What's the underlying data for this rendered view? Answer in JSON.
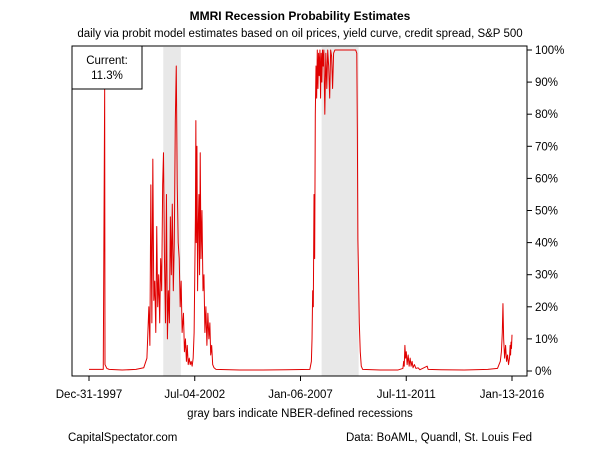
{
  "chart_data": {
    "type": "line",
    "title": "MMRI Recession Probability Estimates",
    "subtitle": "daily via probit model estimates based on oil prices, yield curve, credit spread, S&P 500",
    "xlabel": "gray bars indicate NBER-defined recessions",
    "ylabel": "",
    "x_tick_labels": [
      "Dec-31-1997",
      "Jul-04-2002",
      "Jan-06-2007",
      "Jul-11-2011",
      "Jan-13-2016"
    ],
    "y_tick_labels": [
      "0%",
      "10%",
      "20%",
      "30%",
      "40%",
      "50%",
      "60%",
      "70%",
      "80%",
      "90%",
      "100%"
    ],
    "xlim": [
      "1997-12-31",
      "2016-01-13"
    ],
    "ylim": [
      0,
      100
    ],
    "y_axis_position": "right",
    "grid": false,
    "line_color": "#e00000",
    "recession_color": "#e8e8e8",
    "recession_bands": [
      {
        "start": "2001-03-01",
        "end": "2001-11-30"
      },
      {
        "start": "2007-12-01",
        "end": "2009-06-30"
      }
    ],
    "annotation": {
      "label": "Current:",
      "value": "11.3%"
    },
    "series": [
      {
        "values": [
          [
            "1997-12-31",
            0.5
          ],
          [
            "1998-08-10",
            0.5
          ],
          [
            "1998-09-01",
            88
          ],
          [
            "1998-09-06",
            2
          ],
          [
            "1998-10-05",
            0.8
          ],
          [
            "1998-11-10",
            0.5
          ],
          [
            "1999-06-01",
            0.3
          ],
          [
            "2000-01-01",
            0.5
          ],
          [
            "2000-05-01",
            1
          ],
          [
            "2000-06-20",
            4
          ],
          [
            "2000-07-20",
            20
          ],
          [
            "2000-08-05",
            8
          ],
          [
            "2000-08-20",
            58
          ],
          [
            "2000-09-05",
            15
          ],
          [
            "2000-09-20",
            66
          ],
          [
            "2000-10-05",
            22
          ],
          [
            "2000-10-20",
            28
          ],
          [
            "2000-11-05",
            12
          ],
          [
            "2000-11-20",
            45
          ],
          [
            "2000-12-05",
            20
          ],
          [
            "2000-12-20",
            30
          ],
          [
            "2001-01-05",
            15
          ],
          [
            "2001-01-20",
            35
          ],
          [
            "2001-02-05",
            25
          ],
          [
            "2001-02-20",
            58
          ],
          [
            "2001-03-05",
            68
          ],
          [
            "2001-03-20",
            35
          ],
          [
            "2001-04-05",
            15
          ],
          [
            "2001-04-20",
            55
          ],
          [
            "2001-05-05",
            10
          ],
          [
            "2001-05-20",
            25
          ],
          [
            "2001-06-05",
            15
          ],
          [
            "2001-06-20",
            48
          ],
          [
            "2001-07-05",
            30
          ],
          [
            "2001-07-20",
            52
          ],
          [
            "2001-08-05",
            25
          ],
          [
            "2001-08-20",
            40
          ],
          [
            "2001-09-05",
            78
          ],
          [
            "2001-09-20",
            95
          ],
          [
            "2001-10-05",
            58
          ],
          [
            "2001-10-20",
            40
          ],
          [
            "2001-11-05",
            35
          ],
          [
            "2001-11-20",
            20
          ],
          [
            "2001-12-05",
            28
          ],
          [
            "2001-12-20",
            12
          ],
          [
            "2002-01-10",
            18
          ],
          [
            "2002-01-25",
            6
          ],
          [
            "2002-02-10",
            10
          ],
          [
            "2002-02-25",
            3
          ],
          [
            "2002-03-10",
            8
          ],
          [
            "2002-03-25",
            2
          ],
          [
            "2002-04-10",
            4
          ],
          [
            "2002-04-25",
            2
          ],
          [
            "2002-05-10",
            3
          ],
          [
            "2002-05-25",
            1.5
          ],
          [
            "2002-06-10",
            4
          ],
          [
            "2002-06-25",
            12
          ],
          [
            "2002-07-05",
            30
          ],
          [
            "2002-07-15",
            48
          ],
          [
            "2002-07-22",
            78
          ],
          [
            "2002-07-28",
            40
          ],
          [
            "2002-08-08",
            70
          ],
          [
            "2002-08-18",
            25
          ],
          [
            "2002-08-28",
            45
          ],
          [
            "2002-09-08",
            55
          ],
          [
            "2002-09-18",
            30
          ],
          [
            "2002-09-28",
            68
          ],
          [
            "2002-10-10",
            35
          ],
          [
            "2002-10-25",
            50
          ],
          [
            "2002-11-10",
            25
          ],
          [
            "2002-11-25",
            30
          ],
          [
            "2002-12-10",
            12
          ],
          [
            "2002-12-25",
            20
          ],
          [
            "2003-01-10",
            8
          ],
          [
            "2003-01-25",
            18
          ],
          [
            "2003-02-10",
            10
          ],
          [
            "2003-02-25",
            15
          ],
          [
            "2003-03-10",
            5
          ],
          [
            "2003-03-25",
            8
          ],
          [
            "2003-04-10",
            2
          ],
          [
            "2003-05-01",
            1
          ],
          [
            "2003-06-01",
            0.5
          ],
          [
            "2004-06-01",
            0.3
          ],
          [
            "2005-06-01",
            0.3
          ],
          [
            "2006-06-01",
            0.4
          ],
          [
            "2007-06-01",
            0.5
          ],
          [
            "2007-06-25",
            3
          ],
          [
            "2007-07-05",
            10
          ],
          [
            "2007-07-15",
            25
          ],
          [
            "2007-07-25",
            20
          ],
          [
            "2007-08-05",
            55
          ],
          [
            "2007-08-15",
            35
          ],
          [
            "2007-08-25",
            80
          ],
          [
            "2007-09-05",
            95
          ],
          [
            "2007-09-15",
            85
          ],
          [
            "2007-09-25",
            100
          ],
          [
            "2007-10-05",
            88
          ],
          [
            "2007-10-15",
            99
          ],
          [
            "2007-10-25",
            92
          ],
          [
            "2007-11-05",
            100
          ],
          [
            "2007-11-15",
            85
          ],
          [
            "2007-11-25",
            99
          ],
          [
            "2007-12-05",
            90
          ],
          [
            "2007-12-15",
            100
          ],
          [
            "2007-12-25",
            95
          ],
          [
            "2008-01-05",
            100
          ],
          [
            "2008-01-20",
            80
          ],
          [
            "2008-02-05",
            99
          ],
          [
            "2008-02-20",
            88
          ],
          [
            "2008-03-05",
            100
          ],
          [
            "2008-03-20",
            95
          ],
          [
            "2008-04-05",
            85
          ],
          [
            "2008-04-20",
            100
          ],
          [
            "2008-05-05",
            98
          ],
          [
            "2008-05-20",
            88
          ],
          [
            "2008-06-05",
            99
          ],
          [
            "2008-06-25",
            100
          ],
          [
            "2008-09-01",
            100
          ],
          [
            "2009-05-15",
            100
          ],
          [
            "2009-06-01",
            99
          ],
          [
            "2009-06-10",
            75
          ],
          [
            "2009-06-18",
            41
          ],
          [
            "2009-06-28",
            30
          ],
          [
            "2009-07-10",
            15
          ],
          [
            "2009-07-25",
            6
          ],
          [
            "2009-08-10",
            1.5
          ],
          [
            "2009-09-01",
            0.5
          ],
          [
            "2010-06-01",
            0.3
          ],
          [
            "2011-03-01",
            0.3
          ],
          [
            "2011-05-20",
            0.8
          ],
          [
            "2011-06-01",
            3
          ],
          [
            "2011-06-10",
            1.5
          ],
          [
            "2011-06-20",
            8
          ],
          [
            "2011-07-01",
            4
          ],
          [
            "2011-07-12",
            6
          ],
          [
            "2011-07-25",
            2
          ],
          [
            "2011-08-10",
            5
          ],
          [
            "2011-08-25",
            1.5
          ],
          [
            "2011-09-10",
            4
          ],
          [
            "2011-09-25",
            1.5
          ],
          [
            "2011-10-10",
            3
          ],
          [
            "2011-10-25",
            1
          ],
          [
            "2011-11-15",
            2
          ],
          [
            "2011-12-10",
            0.8
          ],
          [
            "2012-01-10",
            1
          ],
          [
            "2012-02-10",
            0.4
          ],
          [
            "2012-06-01",
            1.5
          ],
          [
            "2012-06-15",
            0.5
          ],
          [
            "2013-01-01",
            0.4
          ],
          [
            "2014-01-01",
            0.3
          ],
          [
            "2015-01-01",
            0.5
          ],
          [
            "2015-06-01",
            0.8
          ],
          [
            "2015-07-15",
            3
          ],
          [
            "2015-08-01",
            6
          ],
          [
            "2015-08-15",
            12
          ],
          [
            "2015-08-25",
            21
          ],
          [
            "2015-09-05",
            10
          ],
          [
            "2015-09-20",
            4
          ],
          [
            "2015-10-05",
            8
          ],
          [
            "2015-10-20",
            3
          ],
          [
            "2015-11-05",
            5
          ],
          [
            "2015-11-20",
            2
          ],
          [
            "2015-12-05",
            4
          ],
          [
            "2015-12-15",
            8
          ],
          [
            "2015-12-22",
            5
          ],
          [
            "2015-12-29",
            9
          ],
          [
            "2016-01-05",
            7
          ],
          [
            "2016-01-13",
            11.3
          ]
        ]
      }
    ]
  },
  "footer": {
    "left": "CapitalSpectator.com",
    "right": "Data: BoAML, Quandl, St. Louis Fed"
  }
}
